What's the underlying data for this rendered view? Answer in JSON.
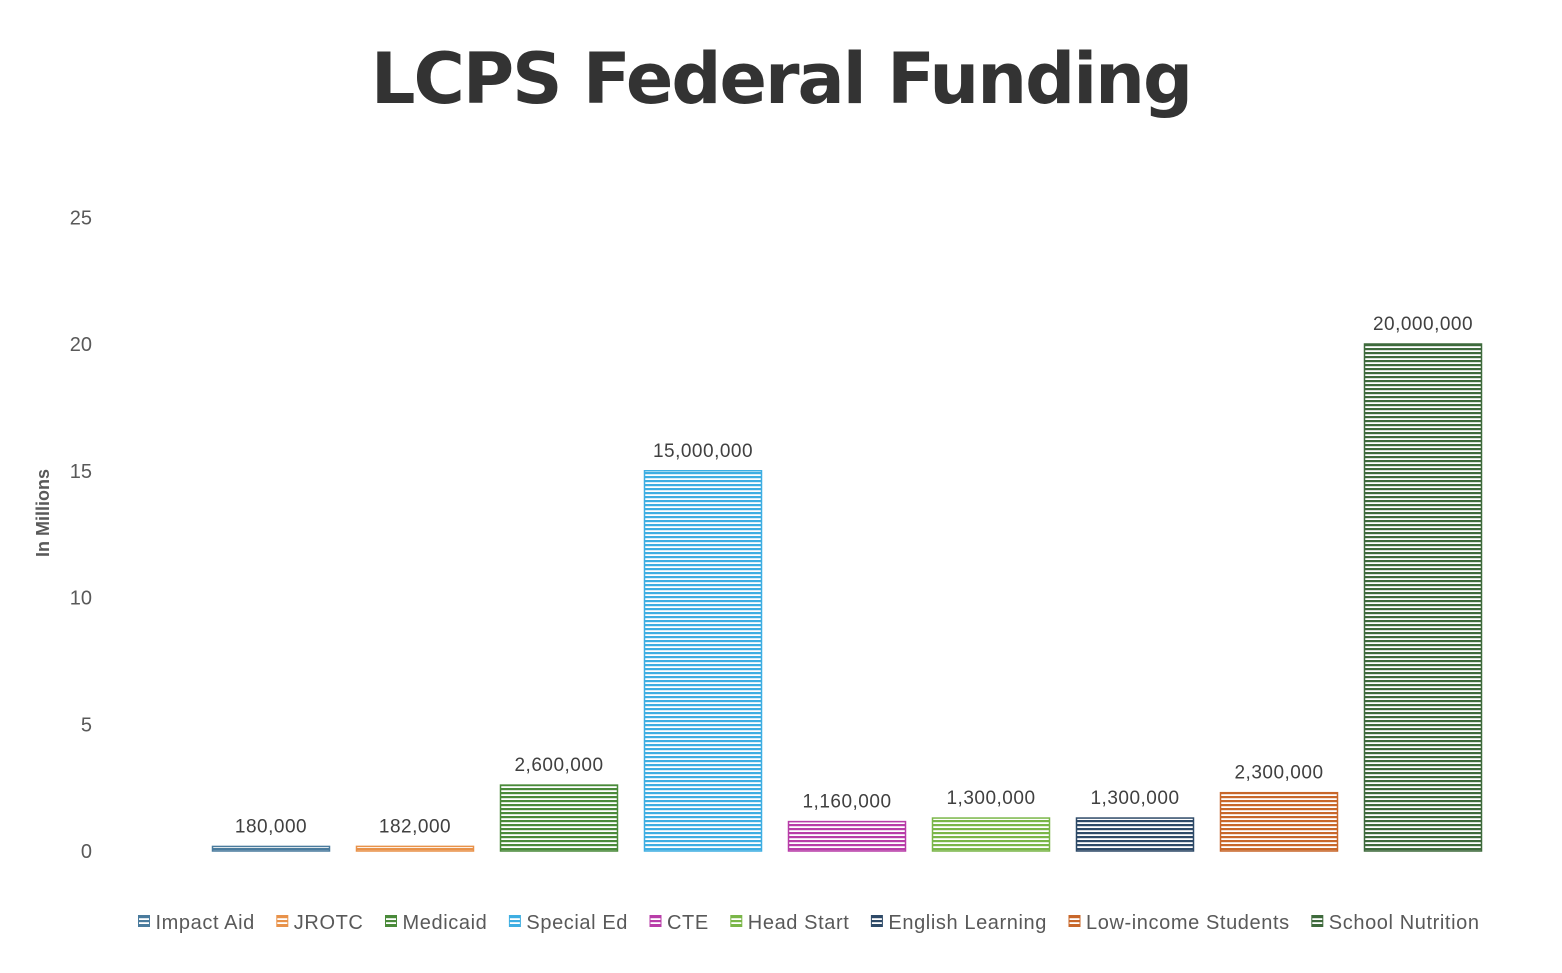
{
  "chart_data": {
    "type": "bar",
    "title": "LCPS Federal Funding",
    "xlabel": "",
    "ylabel": "In Millions",
    "ylim": [
      0,
      25
    ],
    "yticks": [
      0,
      5,
      10,
      15,
      20,
      25
    ],
    "grid": false,
    "legend_position": "bottom",
    "pattern": "horizontal-stripes",
    "series": [
      {
        "name": "Impact Aid",
        "value": 0.18,
        "label": "180,000",
        "color": "#4a7b9d"
      },
      {
        "name": "JROTC",
        "value": 0.182,
        "label": "182,000",
        "color": "#e8924a"
      },
      {
        "name": "Medicaid",
        "value": 2.6,
        "label": "2,600,000",
        "color": "#4a8a3a"
      },
      {
        "name": "Special Ed",
        "value": 15,
        "label": "15,000,000",
        "color": "#3eaee2"
      },
      {
        "name": "CTE",
        "value": 1.16,
        "label": "1,160,000",
        "color": "#b83da8"
      },
      {
        "name": "Head Start",
        "value": 1.3,
        "label": "1,300,000",
        "color": "#7ab648"
      },
      {
        "name": "English Learning",
        "value": 1.3,
        "label": "1,300,000",
        "color": "#2e4a68"
      },
      {
        "name": "Low-income Students",
        "value": 2.3,
        "label": "2,300,000",
        "color": "#c8672a"
      },
      {
        "name": "School Nutrition",
        "value": 20,
        "label": "20,000,000",
        "color": "#3e6a3c"
      }
    ]
  }
}
